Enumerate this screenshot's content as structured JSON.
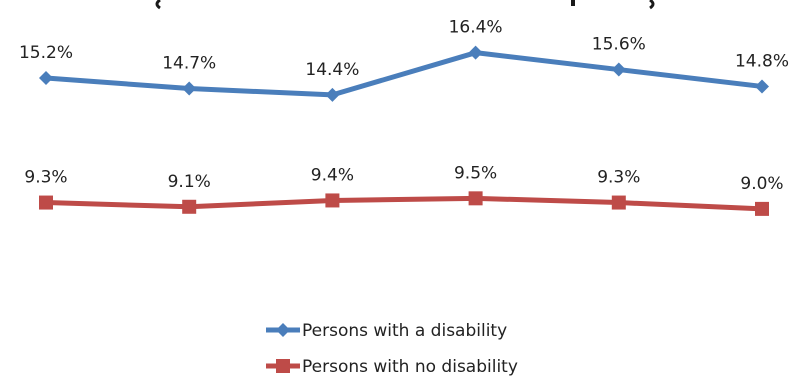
{
  "chart_data": {
    "type": "line",
    "title": "",
    "xlabel": "",
    "ylabel": "",
    "categories": [
      "",
      "",
      "",
      "",
      "",
      ""
    ],
    "ylim": [
      8.0,
      17.0
    ],
    "grid": false,
    "legend_position": "bottom-center",
    "series": [
      {
        "name": "Persons with a disability",
        "values": [
          15.2,
          14.7,
          14.4,
          16.4,
          15.6,
          14.8
        ],
        "labels": [
          "15.2%",
          "14.7%",
          "14.4%",
          "16.4%",
          "15.6%",
          "14.8%"
        ],
        "color": "#4a7ebb",
        "marker": "diamond"
      },
      {
        "name": "Persons with no disability",
        "values": [
          9.3,
          9.1,
          9.4,
          9.5,
          9.3,
          9.0
        ],
        "labels": [
          "9.3%",
          "9.1%",
          "9.4%",
          "9.5%",
          "9.3%",
          "9.0%"
        ],
        "color": "#be4b48",
        "marker": "square"
      }
    ]
  }
}
